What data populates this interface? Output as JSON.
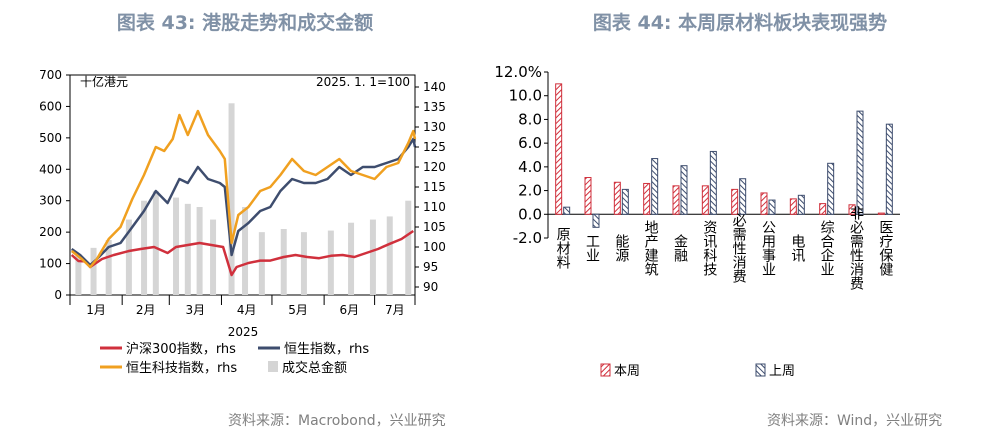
{
  "left": {
    "title": "图表 43: 港股走势和成交金额",
    "unit_label": "十亿港元",
    "base_label": "2025. 1. 1=100",
    "year_label": "2025",
    "source": "资料来源：Macrobond，兴业研究",
    "colors": {
      "csi300": "#d0303c",
      "hsi": "#3e4d6e",
      "hstech": "#f0a020",
      "turnover": "#d5d5d5"
    },
    "legend": {
      "csi300": "沪深300指数，rhs",
      "hsi": "恒生指数，rhs",
      "hstech": "恒生科技指数，rhs",
      "turnover": "成交总金额"
    }
  },
  "right": {
    "title": "图表 44: 本周原材料板块表现强势",
    "source": "资料来源：Wind，兴业研究",
    "colors": {
      "this_week": "#d0303c",
      "last_week": "#3e4d6e"
    }
  },
  "chart_data": [
    {
      "type": "line",
      "title": "图表 43: 港股走势和成交金额",
      "ylabel_left": "十亿港元",
      "ylim_left": [
        0,
        700
      ],
      "yticks_left": [
        0,
        100,
        200,
        300,
        400,
        500,
        600,
        700
      ],
      "ylim_right": [
        88,
        143
      ],
      "yticks_right": [
        90,
        95,
        100,
        105,
        110,
        115,
        120,
        125,
        130,
        135,
        140
      ],
      "xticks": [
        "1月",
        "2月",
        "3月",
        "4月",
        "5月",
        "6月",
        "7月"
      ],
      "x_range": [
        "2025-01-01",
        "2025-07-25"
      ],
      "xlabel": "2025",
      "series": [
        {
          "name": "沪深300指数，rhs",
          "axis": "right",
          "points": [
            [
              "2025-01-02",
              98
            ],
            [
              "2025-01-06",
              96.5
            ],
            [
              "2025-01-10",
              96.4
            ],
            [
              "2025-01-13",
              95
            ],
            [
              "2025-01-20",
              97
            ],
            [
              "2025-01-27",
              98
            ],
            [
              "2025-02-05",
              99
            ],
            [
              "2025-02-12",
              99.5
            ],
            [
              "2025-02-20",
              100
            ],
            [
              "2025-02-28",
              98.5
            ],
            [
              "2025-03-05",
              100
            ],
            [
              "2025-03-12",
              100.5
            ],
            [
              "2025-03-19",
              101
            ],
            [
              "2025-03-26",
              100.5
            ],
            [
              "2025-04-02",
              100
            ],
            [
              "2025-04-07",
              93
            ],
            [
              "2025-04-10",
              95
            ],
            [
              "2025-04-17",
              96
            ],
            [
              "2025-04-24",
              96.6
            ],
            [
              "2025-04-30",
              96.6
            ],
            [
              "2025-05-08",
              97.5
            ],
            [
              "2025-05-15",
              98
            ],
            [
              "2025-05-22",
              97.5
            ],
            [
              "2025-05-29",
              97.2
            ],
            [
              "2025-06-05",
              97.8
            ],
            [
              "2025-06-12",
              98
            ],
            [
              "2025-06-19",
              97.5
            ],
            [
              "2025-06-26",
              98.5
            ],
            [
              "2025-07-03",
              99.5
            ],
            [
              "2025-07-10",
              100.8
            ],
            [
              "2025-07-17",
              102
            ],
            [
              "2025-07-24",
              104
            ]
          ]
        },
        {
          "name": "恒生指数，rhs",
          "axis": "right",
          "points": [
            [
              "2025-01-02",
              99.5
            ],
            [
              "2025-01-07",
              98
            ],
            [
              "2025-01-13",
              95.5
            ],
            [
              "2025-01-17",
              97
            ],
            [
              "2025-01-24",
              100
            ],
            [
              "2025-01-31",
              101
            ],
            [
              "2025-02-07",
              105
            ],
            [
              "2025-02-14",
              109
            ],
            [
              "2025-02-21",
              114
            ],
            [
              "2025-02-28",
              111
            ],
            [
              "2025-03-07",
              117
            ],
            [
              "2025-03-12",
              116
            ],
            [
              "2025-03-18",
              120
            ],
            [
              "2025-03-24",
              117
            ],
            [
              "2025-03-31",
              116
            ],
            [
              "2025-04-03",
              115
            ],
            [
              "2025-04-07",
              98
            ],
            [
              "2025-04-11",
              104
            ],
            [
              "2025-04-17",
              106
            ],
            [
              "2025-04-24",
              109
            ],
            [
              "2025-04-30",
              110
            ],
            [
              "2025-05-06",
              114
            ],
            [
              "2025-05-13",
              117
            ],
            [
              "2025-05-20",
              116
            ],
            [
              "2025-05-27",
              116
            ],
            [
              "2025-06-03",
              117
            ],
            [
              "2025-06-10",
              120
            ],
            [
              "2025-06-17",
              118
            ],
            [
              "2025-06-24",
              120
            ],
            [
              "2025-07-01",
              120
            ],
            [
              "2025-07-08",
              121
            ],
            [
              "2025-07-15",
              122
            ],
            [
              "2025-07-21",
              125
            ],
            [
              "2025-07-24",
              127
            ],
            [
              "2025-07-25",
              125
            ]
          ]
        },
        {
          "name": "恒生科技指数，rhs",
          "axis": "right",
          "points": [
            [
              "2025-01-02",
              99
            ],
            [
              "2025-01-08",
              97
            ],
            [
              "2025-01-13",
              95
            ],
            [
              "2025-01-17",
              97
            ],
            [
              "2025-01-24",
              102
            ],
            [
              "2025-01-31",
              105
            ],
            [
              "2025-02-07",
              112
            ],
            [
              "2025-02-14",
              118
            ],
            [
              "2025-02-21",
              125
            ],
            [
              "2025-02-26",
              124
            ],
            [
              "2025-03-03",
              127
            ],
            [
              "2025-03-07",
              133
            ],
            [
              "2025-03-12",
              128
            ],
            [
              "2025-03-18",
              134
            ],
            [
              "2025-03-24",
              128
            ],
            [
              "2025-03-31",
              124
            ],
            [
              "2025-04-03",
              122
            ],
            [
              "2025-04-07",
              101
            ],
            [
              "2025-04-11",
              108
            ],
            [
              "2025-04-17",
              110
            ],
            [
              "2025-04-24",
              114
            ],
            [
              "2025-04-30",
              115
            ],
            [
              "2025-05-06",
              118
            ],
            [
              "2025-05-13",
              122
            ],
            [
              "2025-05-20",
              119
            ],
            [
              "2025-05-27",
              118
            ],
            [
              "2025-06-03",
              120
            ],
            [
              "2025-06-10",
              122
            ],
            [
              "2025-06-17",
              119
            ],
            [
              "2025-06-24",
              118
            ],
            [
              "2025-07-01",
              117
            ],
            [
              "2025-07-08",
              120
            ],
            [
              "2025-07-15",
              121
            ],
            [
              "2025-07-21",
              126
            ],
            [
              "2025-07-24",
              129
            ],
            [
              "2025-07-25",
              127
            ]
          ]
        },
        {
          "name": "成交总金额",
          "axis": "left",
          "type": "bar",
          "points": [
            [
              "2025-01-06",
              130
            ],
            [
              "2025-01-15",
              150
            ],
            [
              "2025-01-24",
              175
            ],
            [
              "2025-02-05",
              240
            ],
            [
              "2025-02-14",
              300
            ],
            [
              "2025-02-21",
              330
            ],
            [
              "2025-03-05",
              310
            ],
            [
              "2025-03-12",
              290
            ],
            [
              "2025-03-19",
              280
            ],
            [
              "2025-03-27",
              240
            ],
            [
              "2025-04-07",
              610
            ],
            [
              "2025-04-15",
              280
            ],
            [
              "2025-04-25",
              200
            ],
            [
              "2025-05-08",
              210
            ],
            [
              "2025-05-20",
              200
            ],
            [
              "2025-06-05",
              205
            ],
            [
              "2025-06-17",
              230
            ],
            [
              "2025-06-30",
              240
            ],
            [
              "2025-07-10",
              250
            ],
            [
              "2025-07-21",
              300
            ]
          ]
        }
      ]
    },
    {
      "type": "bar",
      "title": "图表 44: 本周原材料板块表现强势",
      "ylim": [
        -2,
        12
      ],
      "yticks": [
        "-2.0",
        "0.0",
        "2.0",
        "4.0",
        "6.0",
        "8.0",
        "10.0",
        "12.0%"
      ],
      "categories": [
        "原材料",
        "工业",
        "能源",
        "地产建筑",
        "金融",
        "资讯科技",
        "必需性消费",
        "公用事业",
        "电讯",
        "综合企业",
        "非必需性消费",
        "医疗保健"
      ],
      "series": [
        {
          "name": "本周",
          "values": [
            11.0,
            3.1,
            2.7,
            2.6,
            2.4,
            2.4,
            2.1,
            1.8,
            1.3,
            0.9,
            0.8,
            0.1
          ]
        },
        {
          "name": "上周",
          "values": [
            0.6,
            -1.1,
            2.1,
            4.7,
            4.1,
            5.3,
            3.0,
            1.2,
            1.6,
            4.3,
            8.7,
            7.6
          ]
        }
      ]
    }
  ]
}
